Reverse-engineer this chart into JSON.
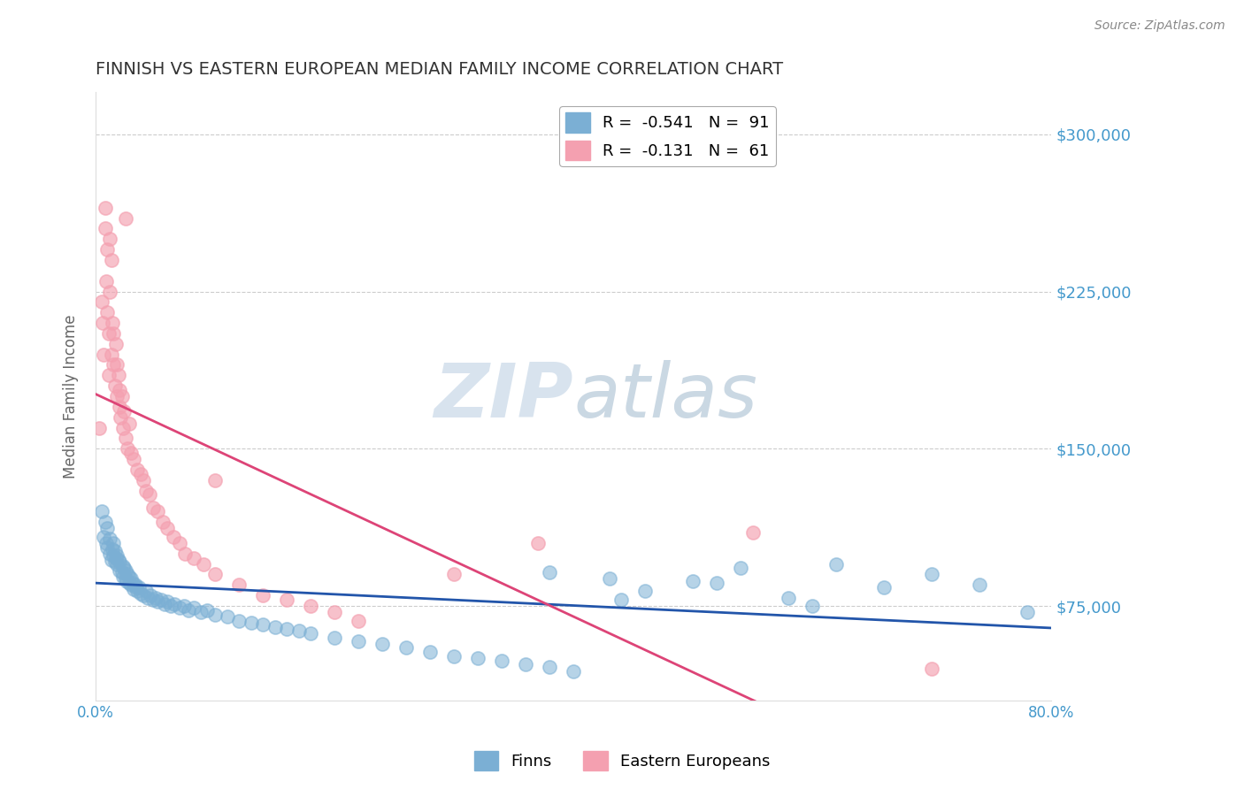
{
  "title": "FINNISH VS EASTERN EUROPEAN MEDIAN FAMILY INCOME CORRELATION CHART",
  "source_text": "Source: ZipAtlas.com",
  "ylabel": "Median Family Income",
  "xlim": [
    0.0,
    0.8
  ],
  "ylim": [
    30000,
    320000
  ],
  "yticks": [
    75000,
    150000,
    225000,
    300000
  ],
  "ytick_labels": [
    "$75,000",
    "$150,000",
    "$225,000",
    "$300,000"
  ],
  "xticks": [
    0.0,
    0.1,
    0.2,
    0.3,
    0.4,
    0.5,
    0.6,
    0.7,
    0.8
  ],
  "xtick_labels": [
    "0.0%",
    "",
    "",
    "",
    "",
    "",
    "",
    "",
    "80.0%"
  ],
  "legend_label1": "R =  -0.541   N =  91",
  "legend_label2": "R =  -0.131   N =  61",
  "legend_label1_short": "Finns",
  "legend_label2_short": "Eastern Europeans",
  "blue_color": "#7BAFD4",
  "pink_color": "#F4A0B0",
  "blue_line_color": "#2255AA",
  "pink_line_color": "#DD4477",
  "axis_color": "#4499CC",
  "title_color": "#333333",
  "watermark_color": "#D0DFF0",
  "background_color": "#FFFFFF",
  "grid_color": "#CCCCCC",
  "finns_x": [
    0.005,
    0.007,
    0.008,
    0.009,
    0.01,
    0.01,
    0.012,
    0.012,
    0.013,
    0.014,
    0.015,
    0.015,
    0.016,
    0.016,
    0.017,
    0.018,
    0.018,
    0.019,
    0.02,
    0.02,
    0.022,
    0.023,
    0.023,
    0.024,
    0.025,
    0.025,
    0.026,
    0.027,
    0.028,
    0.028,
    0.03,
    0.03,
    0.031,
    0.032,
    0.033,
    0.034,
    0.035,
    0.036,
    0.038,
    0.04,
    0.042,
    0.044,
    0.046,
    0.048,
    0.05,
    0.052,
    0.055,
    0.058,
    0.06,
    0.063,
    0.066,
    0.07,
    0.074,
    0.078,
    0.082,
    0.088,
    0.093,
    0.1,
    0.11,
    0.12,
    0.13,
    0.14,
    0.15,
    0.16,
    0.17,
    0.18,
    0.2,
    0.22,
    0.24,
    0.26,
    0.28,
    0.3,
    0.32,
    0.34,
    0.36,
    0.38,
    0.4,
    0.43,
    0.46,
    0.5,
    0.54,
    0.58,
    0.62,
    0.66,
    0.7,
    0.74,
    0.78,
    0.38,
    0.44,
    0.52,
    0.6
  ],
  "finns_y": [
    120000,
    108000,
    115000,
    105000,
    103000,
    112000,
    100000,
    107000,
    97000,
    102000,
    99000,
    105000,
    96000,
    101000,
    98000,
    95000,
    99000,
    97000,
    92000,
    96000,
    91000,
    94000,
    89000,
    93000,
    88000,
    92000,
    87000,
    90000,
    86000,
    89000,
    85000,
    88000,
    86000,
    83000,
    85000,
    84000,
    82000,
    84000,
    81000,
    80000,
    82000,
    79000,
    80000,
    78000,
    79000,
    77000,
    78000,
    76000,
    77000,
    75000,
    76000,
    74000,
    75000,
    73000,
    74000,
    72000,
    73000,
    71000,
    70000,
    68000,
    67000,
    66000,
    65000,
    64000,
    63000,
    62000,
    60000,
    58000,
    57000,
    55000,
    53000,
    51000,
    50000,
    49000,
    47000,
    46000,
    44000,
    88000,
    82000,
    87000,
    93000,
    79000,
    95000,
    84000,
    90000,
    85000,
    72000,
    91000,
    78000,
    86000,
    75000
  ],
  "eastern_x": [
    0.003,
    0.005,
    0.006,
    0.007,
    0.008,
    0.008,
    0.009,
    0.01,
    0.01,
    0.011,
    0.011,
    0.012,
    0.012,
    0.013,
    0.013,
    0.014,
    0.015,
    0.015,
    0.016,
    0.017,
    0.018,
    0.018,
    0.019,
    0.02,
    0.02,
    0.021,
    0.022,
    0.023,
    0.024,
    0.025,
    0.027,
    0.028,
    0.03,
    0.032,
    0.035,
    0.038,
    0.04,
    0.042,
    0.045,
    0.048,
    0.052,
    0.056,
    0.06,
    0.065,
    0.07,
    0.075,
    0.082,
    0.09,
    0.1,
    0.12,
    0.14,
    0.16,
    0.18,
    0.2,
    0.22,
    0.025,
    0.1,
    0.3,
    0.37,
    0.55,
    0.7
  ],
  "eastern_y": [
    160000,
    220000,
    210000,
    195000,
    265000,
    255000,
    230000,
    245000,
    215000,
    185000,
    205000,
    250000,
    225000,
    240000,
    195000,
    210000,
    190000,
    205000,
    180000,
    200000,
    175000,
    190000,
    185000,
    170000,
    178000,
    165000,
    175000,
    160000,
    168000,
    155000,
    150000,
    162000,
    148000,
    145000,
    140000,
    138000,
    135000,
    130000,
    128000,
    122000,
    120000,
    115000,
    112000,
    108000,
    105000,
    100000,
    98000,
    95000,
    90000,
    85000,
    80000,
    78000,
    75000,
    72000,
    68000,
    260000,
    135000,
    90000,
    105000,
    110000,
    45000
  ]
}
